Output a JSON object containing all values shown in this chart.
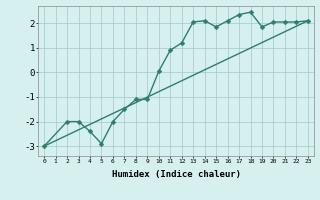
{
  "xlabel": "Humidex (Indice chaleur)",
  "ylabel": "",
  "bg_color": "#d6f0f0",
  "line_color": "#2e7d6e",
  "grid_color": "#a0c8c8",
  "xlim": [
    -0.5,
    23.5
  ],
  "ylim": [
    -3.4,
    2.7
  ],
  "xticks": [
    0,
    1,
    2,
    3,
    4,
    5,
    6,
    7,
    8,
    9,
    10,
    11,
    12,
    13,
    14,
    15,
    16,
    17,
    18,
    19,
    20,
    21,
    22,
    23
  ],
  "yticks": [
    -3,
    -2,
    -1,
    0,
    1,
    2
  ],
  "curve1_x": [
    0,
    2,
    3,
    4,
    5,
    6,
    7,
    8,
    9,
    10,
    11,
    12,
    13,
    14,
    15,
    16,
    17,
    18,
    19,
    20,
    21,
    22,
    23
  ],
  "curve1_y": [
    -3.0,
    -2.0,
    -2.0,
    -2.4,
    -2.9,
    -2.0,
    -1.5,
    -1.1,
    -1.1,
    0.05,
    0.9,
    1.2,
    2.05,
    2.1,
    1.85,
    2.1,
    2.35,
    2.45,
    1.85,
    2.05,
    2.05,
    2.05,
    2.1
  ],
  "curve2_x": [
    0,
    23
  ],
  "curve2_y": [
    -3.0,
    2.1
  ]
}
